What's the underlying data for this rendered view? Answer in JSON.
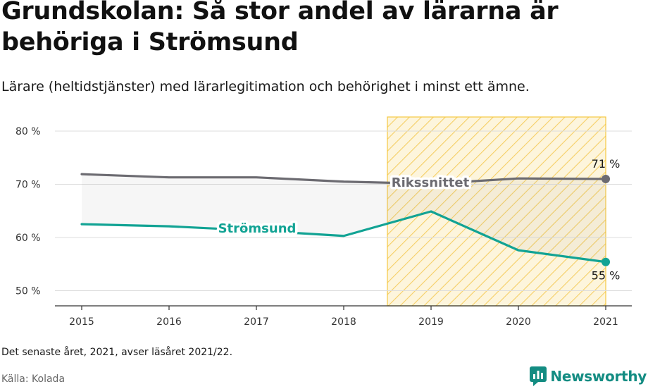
{
  "title": "Grundskolan: Så stor andel av lärarna är behöriga i Strömsund",
  "subtitle": "Lärare (heltidstjänster) med lärarlegitimation och behörighet i minst ett ämne.",
  "note": "Det senaste året, 2021, avser läsåret 2021/22.",
  "source": "Källa: Kolada",
  "brand": {
    "name": "Newsworthy",
    "icon": "newsworthy-logo-icon",
    "color": "#138c82"
  },
  "chart_data": {
    "type": "line",
    "x": [
      2015,
      2016,
      2017,
      2018,
      2019,
      2020,
      2021
    ],
    "series": [
      {
        "name": "Rikssnittet",
        "values": [
          71.9,
          71.3,
          71.3,
          70.5,
          70.1,
          71.1,
          71.0
        ],
        "color": "#6c6b71",
        "end_label": "71 %"
      },
      {
        "name": "Strömsund",
        "values": [
          62.5,
          62.1,
          61.3,
          60.3,
          64.9,
          57.6,
          55.4
        ],
        "color": "#12a394",
        "end_label": "55 %"
      }
    ],
    "ylim": [
      47,
      82
    ],
    "y_ticks": [
      50,
      60,
      70,
      80
    ],
    "y_tick_labels": [
      "50 %",
      "60 %",
      "70 %",
      "80 %"
    ],
    "x_tick_labels": [
      "2015",
      "2016",
      "2017",
      "2018",
      "2019",
      "2020",
      "2021"
    ],
    "highlight_range": [
      2018.5,
      2021
    ],
    "highlight_color": "#f5c842",
    "grid": true
  }
}
